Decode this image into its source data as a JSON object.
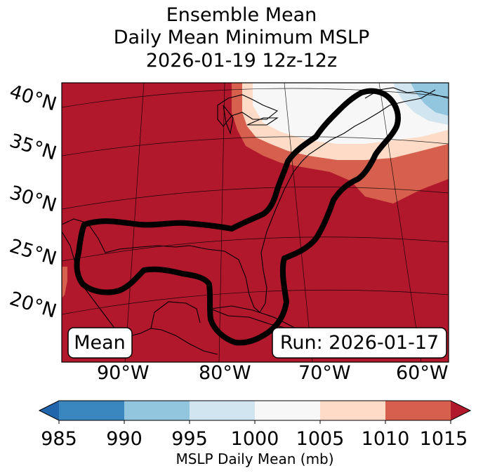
{
  "title": {
    "line1": "Ensemble Mean",
    "line2": "Daily Mean Minimum MSLP",
    "line3": "2026-01-19 12z-12z"
  },
  "map": {
    "lat_labels": [
      "40°N",
      "35°N",
      "30°N",
      "25°N",
      "20°N"
    ],
    "lon_labels": [
      "90°W",
      "80°W",
      "70°W",
      "60°W"
    ],
    "mean_box": "Mean",
    "run_box": "Run: 2026-01-17",
    "colors": {
      "c985_990": "#3a87bf",
      "c990_995": "#92c5de",
      "c995_1000": "#d1e5f0",
      "c1000_1005": "#f7f7f7",
      "c1005_1010": "#fddbc7",
      "c1010_1015": "#d6604d",
      "c1015_plus": "#b2182b",
      "under": "#2166ac"
    }
  },
  "colorbar": {
    "ticks": [
      "985",
      "990",
      "995",
      "1000",
      "1005",
      "1010",
      "1015"
    ],
    "label": "MSLP Daily Mean (mb)"
  }
}
